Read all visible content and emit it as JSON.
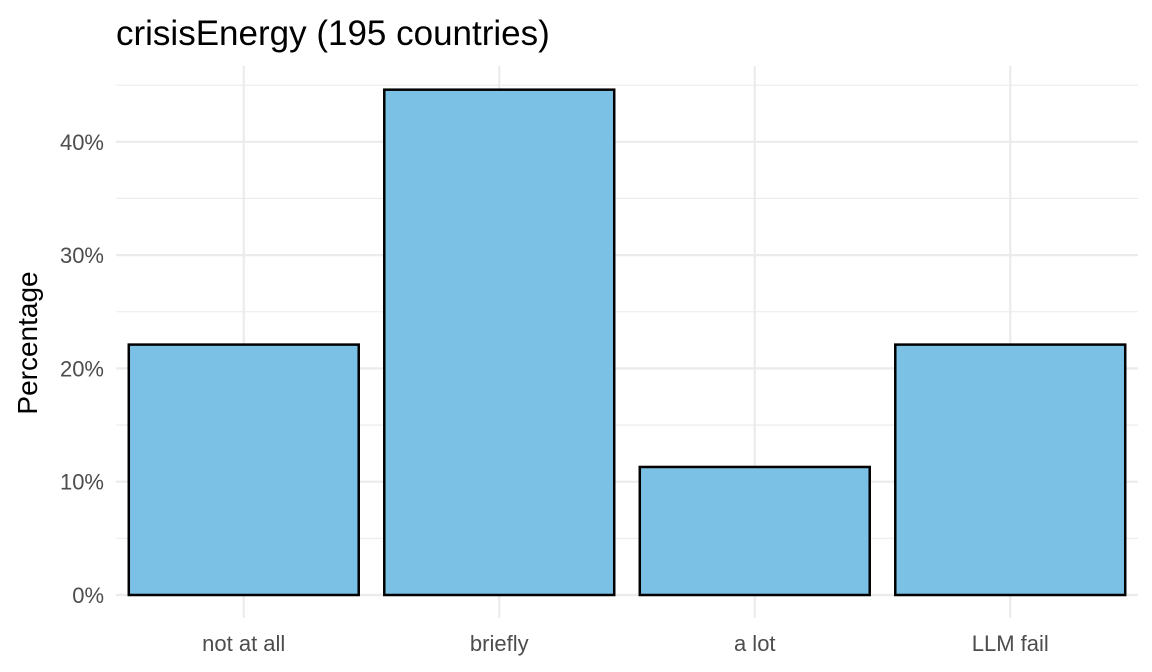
{
  "chart_data": {
    "type": "bar",
    "title": "crisisEnergy (195 countries)",
    "xlabel": "",
    "ylabel": "Percentage",
    "categories": [
      "not at all",
      "briefly",
      "a lot",
      "LLM fail"
    ],
    "values": [
      22.1,
      44.6,
      11.3,
      22.1
    ],
    "ylim": [
      0,
      46.5
    ],
    "yticks": [
      0,
      10,
      20,
      30,
      40
    ],
    "ytick_labels": [
      "0%",
      "10%",
      "20%",
      "30%",
      "40%"
    ],
    "grid": true,
    "legend": "none",
    "colors": {
      "bar_fill": "#7ac1e5",
      "bar_outline": "#000000",
      "grid": "#ebebeb"
    }
  }
}
